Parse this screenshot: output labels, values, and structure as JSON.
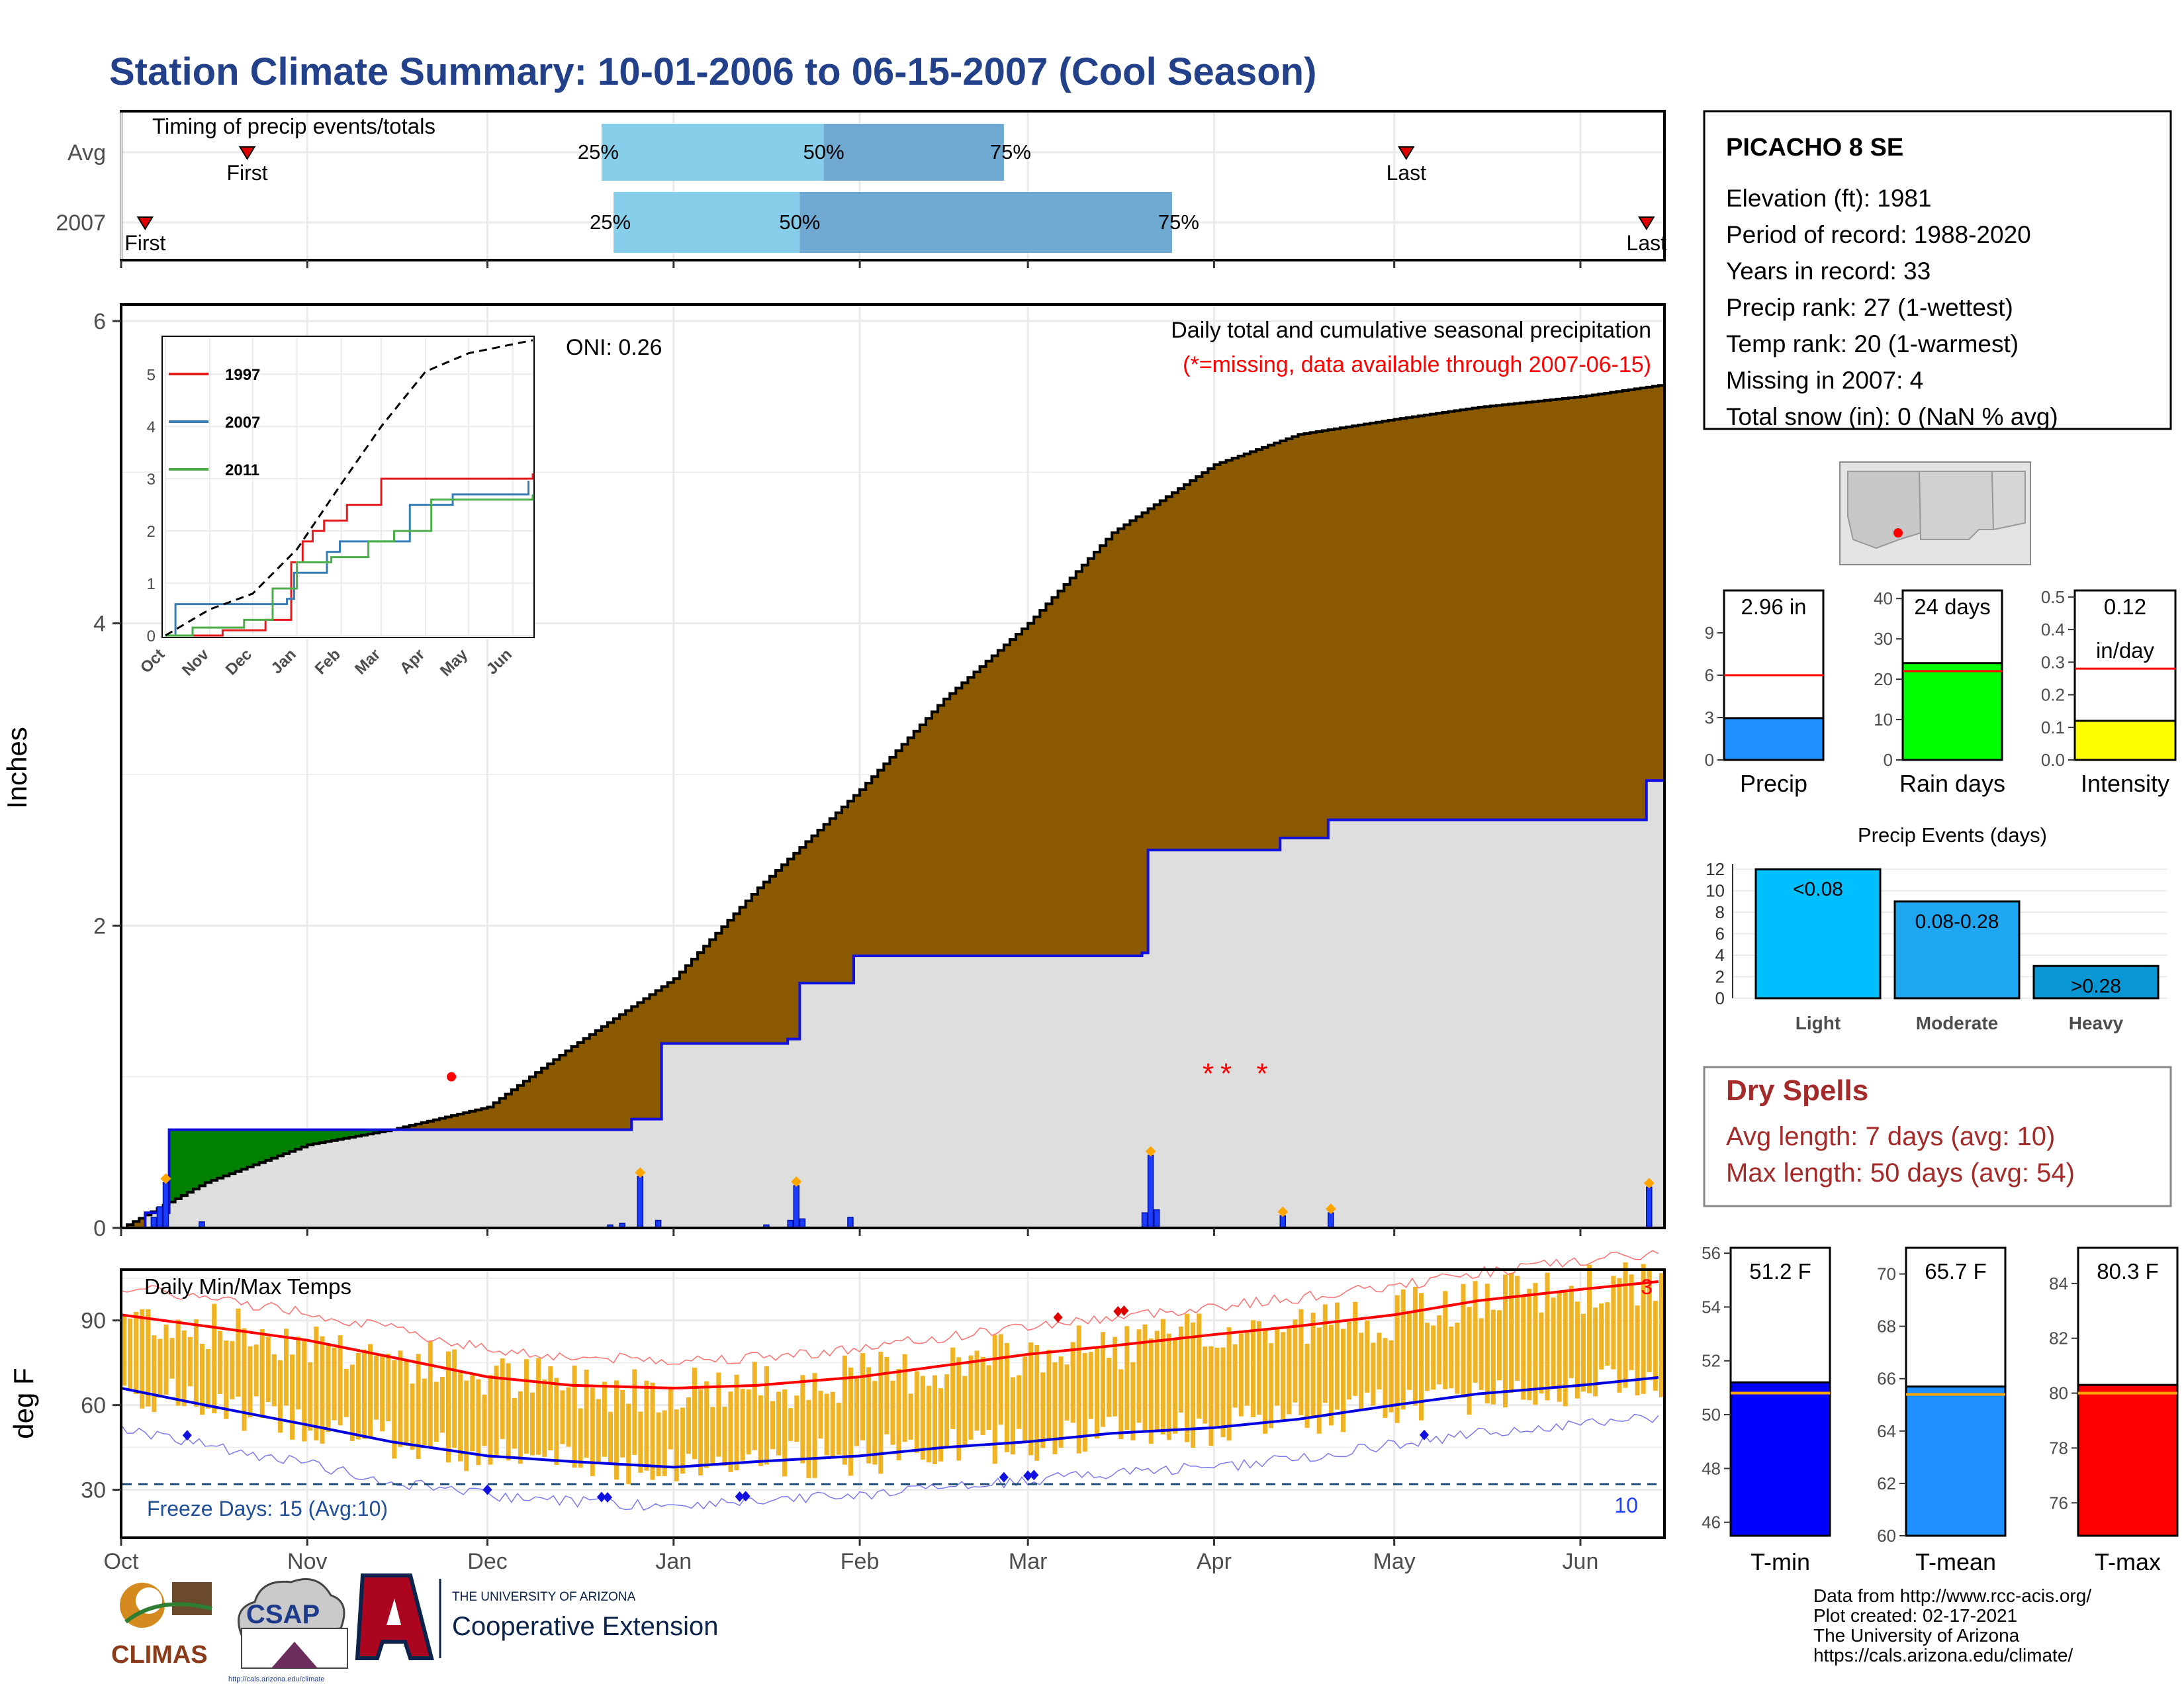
{
  "header": {
    "title": "Station Climate Summary: 10-01-2006 to 06-15-2007 (Cool Season)"
  },
  "colors": {
    "title": "#23418a",
    "cumulative_fill": "#8b5a00",
    "avg_fill": "#dedede",
    "early_fill": "#008000",
    "daily_bars": "#1a3cff",
    "temp_bars": "#f0b323",
    "tmax_line": "#ff0000",
    "tmin_line": "#0000e0",
    "timing_light": "#87ceeb",
    "timing_dark": "#6fa8d0"
  },
  "timing": {
    "title": "Timing of precip events/totals",
    "rows": [
      {
        "label": "Avg",
        "first_label": "First",
        "last_label": "Last",
        "first_date": "2006-10-22",
        "p25_label": "25%",
        "p25_date": "2006-12-20",
        "p50_label": "50%",
        "p50_date": "2007-01-26",
        "p75_label": "75%",
        "p75_date": "2007-02-25",
        "last_date": "2007-05-03"
      },
      {
        "label": "2007",
        "first_label": "First",
        "last_label": "Last",
        "first_date": "2006-10-05",
        "p25_label": "25%",
        "p25_date": "2006-12-22",
        "p50_label": "50%",
        "p50_date": "2007-01-22",
        "p75_label": "75%",
        "p75_date": "2007-03-25",
        "last_date": "2007-06-12"
      }
    ]
  },
  "precip_panel": {
    "ylabel": "Inches",
    "yticks": [
      "0",
      "2",
      "4",
      "6"
    ],
    "oni": "ONI: 0.26",
    "label": "Daily total and cumulative seasonal precipitation",
    "missing_note": "(*=missing, data available through 2007-06-15)"
  },
  "inset": {
    "yticks": [
      "0",
      "1",
      "2",
      "3",
      "4",
      "5"
    ],
    "months": [
      "Oct",
      "Nov",
      "Dec",
      "Jan",
      "Feb",
      "Mar",
      "Apr",
      "May",
      "Jun"
    ],
    "legend": [
      "1997",
      "2007",
      "2011"
    ],
    "legend_colors": [
      "#e41a1c",
      "#377eb8",
      "#4daf4a"
    ]
  },
  "temp_panel": {
    "ylabel": "deg F",
    "label": "Daily Min/Max Temps",
    "yticks": [
      "30",
      "60",
      "90"
    ],
    "freeze_text": "Freeze Days: 15 (Avg:10)",
    "count_low": "10",
    "count_high": "3"
  },
  "x_months": [
    "Oct",
    "Nov",
    "Dec",
    "Jan",
    "Feb",
    "Mar",
    "Apr",
    "May",
    "Jun"
  ],
  "station": {
    "name": "PICACHO 8 SE",
    "lines": [
      "Elevation (ft): 1981",
      "Period of record: 1988-2020",
      "Years in record: 33",
      "Precip rank: 27 (1-wettest)",
      "Temp rank: 20 (1-warmest)",
      "Missing in 2007: 4",
      "Total snow (in): 0 (NaN % avg)"
    ]
  },
  "summary_bars": [
    {
      "label": "Precip",
      "value_text": "2.96 in",
      "value": 2.96,
      "avg": 6.0,
      "ymax": 12,
      "ticks": [
        "0",
        "3",
        "6",
        "9"
      ],
      "color": "#1e90ff"
    },
    {
      "label": "Rain days",
      "value_text": "24 days",
      "value": 24,
      "avg": 22,
      "ymax": 42,
      "ticks": [
        "0",
        "10",
        "20",
        "30",
        "40"
      ],
      "color": "#00ff00"
    },
    {
      "label": "Intensity",
      "value_text": "0.12",
      "value_text2": "in/day",
      "value": 0.12,
      "avg": 0.28,
      "ymax": 0.52,
      "ticks": [
        "0.0",
        "0.1",
        "0.2",
        "0.3",
        "0.4",
        "0.5"
      ],
      "color": "#ffff00"
    }
  ],
  "events": {
    "title": "Precip Events (days)",
    "ticks": [
      "0",
      "2",
      "4",
      "6",
      "8",
      "10",
      "12"
    ],
    "categories": [
      "Light",
      "Moderate",
      "Heavy"
    ],
    "labels": [
      "<0.08",
      "0.08-0.28",
      ">0.28"
    ],
    "values": [
      12,
      9,
      3
    ],
    "colors": [
      "#00bfff",
      "#1ea6f0",
      "#0896d4"
    ]
  },
  "dry_spells": {
    "title": "Dry Spells",
    "avg": "Avg length: 7 days (avg: 10)",
    "max": "Max length: 50 days (avg: 54)"
  },
  "temp_bars": [
    {
      "label": "T-min",
      "value_text": "51.2 F",
      "value": 51.2,
      "avg": 50.8,
      "ymin": 45.5,
      "ymax": 56.2,
      "ticks": [
        "46",
        "48",
        "50",
        "52",
        "54",
        "56"
      ],
      "color": "#0000ff"
    },
    {
      "label": "T-mean",
      "value_text": "65.7 F",
      "value": 65.7,
      "avg": 65.4,
      "ymin": 60,
      "ymax": 71,
      "ticks": [
        "60",
        "62",
        "64",
        "66",
        "68",
        "70"
      ],
      "color": "#1e90ff"
    },
    {
      "label": "T-max",
      "value_text": "80.3 F",
      "value": 80.3,
      "avg": 80.0,
      "ymin": 74.8,
      "ymax": 85.3,
      "ticks": [
        "76",
        "78",
        "80",
        "82",
        "84"
      ],
      "color": "#ff0000"
    }
  ],
  "footer": {
    "lines": [
      "Data from http://www.rcc-acis.org/",
      "Plot created: 02-17-2021",
      "The University of Arizona",
      "https://cals.arizona.edu/climate/"
    ],
    "ua_top": "THE UNIVERSITY OF ARIZONA",
    "ua_bottom": "Cooperative Extension",
    "climas": "CLIMAS",
    "csap": "CSAP",
    "csap_url": "http://cals.arizona.edu/climate"
  },
  "chart_data": [
    {
      "type": "area",
      "title": "Daily total and cumulative seasonal precipitation",
      "ylabel": "Inches",
      "ylim": [
        0,
        6
      ],
      "x_range": [
        "2006-10-01",
        "2007-06-15"
      ],
      "series": [
        {
          "name": "cumulative average",
          "points": [
            [
              "2006-10-01",
              0
            ],
            [
              "2006-10-15",
              0.3
            ],
            [
              "2006-11-01",
              0.55
            ],
            [
              "2006-11-15",
              0.65
            ],
            [
              "2006-12-01",
              0.8
            ],
            [
              "2006-12-15",
              1.2
            ],
            [
              "2007-01-01",
              1.65
            ],
            [
              "2007-01-15",
              2.25
            ],
            [
              "2007-02-01",
              2.9
            ],
            [
              "2007-02-15",
              3.5
            ],
            [
              "2007-03-01",
              4.0
            ],
            [
              "2007-03-15",
              4.6
            ],
            [
              "2007-04-01",
              5.05
            ],
            [
              "2007-04-15",
              5.25
            ],
            [
              "2007-05-01",
              5.35
            ],
            [
              "2007-05-15",
              5.43
            ],
            [
              "2007-06-01",
              5.5
            ],
            [
              "2007-06-15",
              5.58
            ]
          ]
        },
        {
          "name": "cumulative 2007",
          "points": [
            [
              "2006-10-01",
              0
            ],
            [
              "2006-10-05",
              0.1
            ],
            [
              "2006-10-09",
              0.65
            ],
            [
              "2006-12-25",
              0.72
            ],
            [
              "2006-12-30",
              1.22
            ],
            [
              "2007-01-20",
              1.25
            ],
            [
              "2007-01-22",
              1.62
            ],
            [
              "2007-01-31",
              1.8
            ],
            [
              "2007-03-20",
              1.82
            ],
            [
              "2007-03-21",
              2.5
            ],
            [
              "2007-04-12",
              2.58
            ],
            [
              "2007-04-20",
              2.7
            ],
            [
              "2007-06-12",
              2.96
            ]
          ]
        },
        {
          "name": "daily precip",
          "points": [
            [
              "2006-10-06",
              0.07
            ],
            [
              "2006-10-07",
              0.14
            ],
            [
              "2006-10-08",
              0.3
            ],
            [
              "2006-10-14",
              0.04
            ],
            [
              "2006-12-21",
              0.02
            ],
            [
              "2006-12-23",
              0.03
            ],
            [
              "2006-12-26",
              0.34
            ],
            [
              "2006-12-29",
              0.05
            ],
            [
              "2007-01-16",
              0.02
            ],
            [
              "2007-01-20",
              0.05
            ],
            [
              "2007-01-21",
              0.28
            ],
            [
              "2007-01-22",
              0.06
            ],
            [
              "2007-01-30",
              0.07
            ],
            [
              "2007-03-20",
              0.1
            ],
            [
              "2007-03-21",
              0.48
            ],
            [
              "2007-03-22",
              0.12
            ],
            [
              "2007-04-12",
              0.08
            ],
            [
              "2007-04-20",
              0.1
            ],
            [
              "2007-06-12",
              0.27
            ]
          ]
        }
      ],
      "missing_dates": [
        "2006-11-25",
        "2007-03-31",
        "2007-04-03",
        "2007-04-09"
      ]
    },
    {
      "type": "line",
      "title": "",
      "ylim": [
        0,
        5.7
      ],
      "series": [
        {
          "name": "1997",
          "points": [
            [
              "2006-10-01",
              0
            ],
            [
              "2006-11-10",
              0.1
            ],
            [
              "2006-12-10",
              0.3
            ],
            [
              "2006-12-28",
              1.4
            ],
            [
              "2007-01-05",
              1.8
            ],
            [
              "2007-01-12",
              2.0
            ],
            [
              "2007-01-20",
              2.2
            ],
            [
              "2007-02-05",
              2.5
            ],
            [
              "2007-03-01",
              3.0
            ],
            [
              "2007-04-10",
              3.0
            ],
            [
              "2007-06-15",
              3.1
            ]
          ]
        },
        {
          "name": "2007",
          "points": [
            [
              "2006-10-01",
              0
            ],
            [
              "2006-10-08",
              0.6
            ],
            [
              "2006-12-25",
              0.7
            ],
            [
              "2006-12-30",
              1.2
            ],
            [
              "2007-01-22",
              1.6
            ],
            [
              "2007-01-31",
              1.8
            ],
            [
              "2007-03-21",
              2.5
            ],
            [
              "2007-04-20",
              2.7
            ],
            [
              "2007-06-12",
              2.96
            ]
          ]
        },
        {
          "name": "2011",
          "points": [
            [
              "2006-10-01",
              0
            ],
            [
              "2006-10-20",
              0.15
            ],
            [
              "2006-11-25",
              0.3
            ],
            [
              "2006-12-15",
              0.9
            ],
            [
              "2007-01-01",
              1.4
            ],
            [
              "2007-01-25",
              1.5
            ],
            [
              "2007-02-20",
              1.8
            ],
            [
              "2007-03-10",
              2.0
            ],
            [
              "2007-04-05",
              2.6
            ],
            [
              "2007-06-15",
              2.7
            ]
          ]
        },
        {
          "name": "",
          "points": [
            [
              "2006-10-01",
              0
            ],
            [
              "2006-11-01",
              0.5
            ],
            [
              "2006-12-01",
              0.8
            ],
            [
              "2007-01-01",
              1.65
            ],
            [
              "2007-02-01",
              2.9
            ],
            [
              "2007-03-01",
              4.0
            ],
            [
              "2007-04-01",
              5.05
            ],
            [
              "2007-05-01",
              5.4
            ],
            [
              "2007-06-15",
              5.65
            ]
          ]
        }
      ]
    },
    {
      "type": "bar",
      "title": "Daily Min/Max Temps",
      "ylabel": "deg F",
      "ylim": [
        13,
        108
      ],
      "freeze_line": 32,
      "series": [
        {
          "name": "avg max",
          "points": [
            [
              "2006-10-01",
              92
            ],
            [
              "2006-10-15",
              88
            ],
            [
              "2006-11-01",
              83
            ],
            [
              "2006-11-15",
              77
            ],
            [
              "2006-12-01",
              70
            ],
            [
              "2006-12-15",
              67
            ],
            [
              "2007-01-01",
              66
            ],
            [
              "2007-01-15",
              67
            ],
            [
              "2007-02-01",
              70
            ],
            [
              "2007-02-15",
              74
            ],
            [
              "2007-03-01",
              78
            ],
            [
              "2007-03-15",
              81
            ],
            [
              "2007-04-01",
              85
            ],
            [
              "2007-04-15",
              88
            ],
            [
              "2007-05-01",
              92
            ],
            [
              "2007-05-15",
              97
            ],
            [
              "2007-06-01",
              101
            ],
            [
              "2007-06-15",
              104
            ]
          ]
        },
        {
          "name": "avg min",
          "points": [
            [
              "2006-10-01",
              66
            ],
            [
              "2006-10-15",
              60
            ],
            [
              "2006-11-01",
              53
            ],
            [
              "2006-11-15",
              47
            ],
            [
              "2006-12-01",
              42
            ],
            [
              "2006-12-15",
              40
            ],
            [
              "2007-01-01",
              38
            ],
            [
              "2007-01-15",
              40
            ],
            [
              "2007-02-01",
              42
            ],
            [
              "2007-02-15",
              45
            ],
            [
              "2007-03-01",
              47
            ],
            [
              "2007-03-15",
              50
            ],
            [
              "2007-04-01",
              52
            ],
            [
              "2007-04-15",
              55
            ],
            [
              "2007-05-01",
              60
            ],
            [
              "2007-05-15",
              64
            ],
            [
              "2007-06-01",
              67
            ],
            [
              "2007-06-15",
              70
            ]
          ]
        }
      ],
      "markers": {
        "freeze_days": [
          "2006-10-12",
          "2006-12-01",
          "2006-12-20",
          "2006-12-21",
          "2007-01-12",
          "2007-01-13",
          "2007-02-25",
          "2007-03-01",
          "2007-03-02",
          "2007-05-06"
        ],
        "hot_days": [
          "2007-03-06",
          "2007-03-16",
          "2007-03-17"
        ]
      }
    }
  ]
}
